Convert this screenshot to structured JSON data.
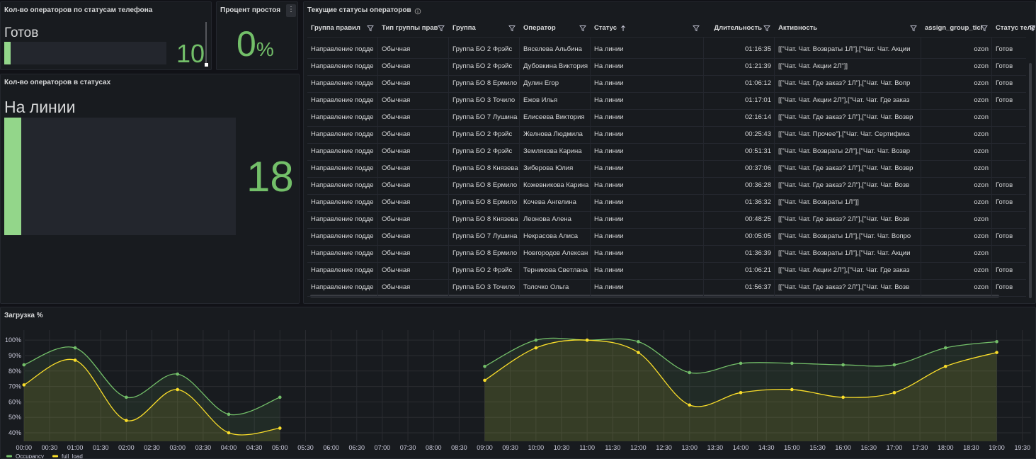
{
  "panels": {
    "phone_status": {
      "title": "Кол-во операторов по статусам телефона",
      "label": "Готов",
      "value": 10
    },
    "idle": {
      "title": "Процент простоя",
      "value": 0,
      "unit": "%"
    },
    "status_count": {
      "title": "Кол-во операторов в статусах",
      "label": "На линии",
      "value": 18
    }
  },
  "table": {
    "title": "Текущие статусы операторов",
    "columns": [
      "Группа правил",
      "Тип группы прав",
      "Группа",
      "Оператор",
      "Статус",
      "Длительность",
      "Активность",
      "assign_group_ticl",
      "Статус теле"
    ],
    "rows": [
      [
        "Направление подде",
        "Обычная",
        "Группа БО 2 Фрэйс",
        "Вяселева Альбина",
        "На линии",
        "01:16:35",
        "[[\"Чат. Чат. Возвраты 1Л\"],[\"Чат. Чат. Акции",
        "ozon",
        "Готов"
      ],
      [
        "Направление подде",
        "Обычная",
        "Группа БО 2 Фрэйс",
        "Дубовкина Виктория",
        "На линии",
        "01:21:39",
        "[[\"Чат. Чат. Акции 2Л\"]]",
        "ozon",
        "Готов"
      ],
      [
        "Направление подде",
        "Обычная",
        "Группа БО 8 Ермило",
        "Дулин Егор",
        "На линии",
        "01:06:12",
        "[[\"Чат. Чат. Где заказ? 1Л\"],[\"Чат. Чат. Вопр",
        "ozon",
        "Готов"
      ],
      [
        "Направление подде",
        "Обычная",
        "Группа БО 3 Точило",
        "Ежов Илья",
        "На линии",
        "01:17:01",
        "[[\"Чат. Чат. Акции 2Л\"],[\"Чат. Чат. Где заказ",
        "ozon",
        "Готов"
      ],
      [
        "Направление подде",
        "Обычная",
        "Группа БО 7 Лушина",
        "Елисеева Виктория",
        "На линии",
        "02:16:14",
        "[[\"Чат. Чат. Где заказ? 1Л\"],[\"Чат. Чат. Возвр",
        "ozon",
        null
      ],
      [
        "Направление подде",
        "Обычная",
        "Группа БО 2 Фрэйс",
        "Желнова Людмила",
        "На линии",
        "00:25:43",
        "[[\"Чат. Чат. Прочее\"],[\"Чат. Чат. Сертифика",
        "ozon",
        null
      ],
      [
        "Направление подде",
        "Обычная",
        "Группа БО 2 Фрэйс",
        "Землякова Карина",
        "На линии",
        "00:51:31",
        "[[\"Чат. Чат. Возвраты 2Л\"],[\"Чат. Чат. Возвр",
        "ozon",
        null
      ],
      [
        "Направление подде",
        "Обычная",
        "Группа БО 8 Князева",
        "Зиберова Юлия",
        "На линии",
        "00:37:06",
        "[[\"Чат. Чат. Где заказ? 1Л\"],[\"Чат. Чат. Возвр",
        "ozon",
        null
      ],
      [
        "Направление подде",
        "Обычная",
        "Группа БО 8 Ермило",
        "Кожевникова Карина",
        "На линии",
        "00:36:28",
        "[[\"Чат. Чат. Где заказ? 2Л\"],[\"Чат. Чат. Возв",
        "ozon",
        "Готов"
      ],
      [
        "Направление подде",
        "Обычная",
        "Группа БО 8 Ермило",
        "Кочева Ангелина",
        "На линии",
        "01:36:32",
        "[[\"Чат. Чат. Возвраты 1Л\"]]",
        "ozon",
        "Готов"
      ],
      [
        "Направление подде",
        "Обычная",
        "Группа БО 8 Князева",
        "Леонова Алена",
        "На линии",
        "00:48:25",
        "[[\"Чат. Чат. Где заказ? 2Л\"],[\"Чат. Чат. Возв",
        "ozon",
        null
      ],
      [
        "Направление подде",
        "Обычная",
        "Группа БО 7 Лушина",
        "Некрасова Алиса",
        "На линии",
        "00:05:05",
        "[[\"Чат. Чат. Возвраты 1Л\"],[\"Чат. Чат. Вопро",
        "ozon",
        "Готов"
      ],
      [
        "Направление подде",
        "Обычная",
        "Группа БО 8 Ермило",
        "Новгородов Алексан",
        "На линии",
        "01:36:39",
        "[[\"Чат. Чат. Возвраты 1Л\"],[\"Чат. Чат. Акции",
        "ozon",
        null
      ],
      [
        "Направление подде",
        "Обычная",
        "Группа БО 2 Фрэйс",
        "Терникова Светлана",
        "На линии",
        "01:06:21",
        "[[\"Чат. Чат. Акции 2Л\"],[\"Чат. Чат. Где заказ",
        "ozon",
        "Готов"
      ],
      [
        "Направление подде",
        "Обычная",
        "Группа БО 3 Точило",
        "Толочко Ольга",
        "На линии",
        "01:56:37",
        "[[\"Чат. Чат. Где заказ? 2Л\"],[\"Чат. Чат. Возв",
        "ozon",
        "Готов"
      ]
    ]
  },
  "chart_data": {
    "type": "line",
    "title": "Загрузка %",
    "x": [
      0,
      1,
      2,
      3,
      4,
      5,
      6,
      7,
      8,
      9,
      10,
      11,
      12,
      13,
      14,
      15,
      16,
      17,
      18,
      19
    ],
    "series": [
      {
        "name": "Occupancy",
        "color": "#73bf69",
        "values": [
          84,
          95,
          63,
          78,
          52,
          63,
          null,
          null,
          null,
          83,
          100,
          100,
          99,
          79,
          85,
          85,
          84,
          84,
          95,
          99
        ]
      },
      {
        "name": "full_load",
        "color": "#fade2a",
        "values": [
          71,
          87,
          48,
          68,
          40,
          43,
          null,
          null,
          null,
          74,
          95,
          100,
          92,
          58,
          66,
          68,
          63,
          66,
          83,
          92
        ]
      }
    ],
    "xlim": [
      -0.26,
      19.67
    ],
    "xticks": [
      {
        "value": 0,
        "label": "00:00"
      },
      {
        "value": 0.5,
        "label": "00:30"
      },
      {
        "value": 1,
        "label": "01:00"
      },
      {
        "value": 1.5,
        "label": "01:30"
      },
      {
        "value": 2,
        "label": "02:00"
      },
      {
        "value": 2.5,
        "label": "02:30"
      },
      {
        "value": 3,
        "label": "03:00"
      },
      {
        "value": 3.5,
        "label": "03:30"
      },
      {
        "value": 4,
        "label": "04:00"
      },
      {
        "value": 4.5,
        "label": "04:30"
      },
      {
        "value": 5,
        "label": "05:00"
      },
      {
        "value": 5.5,
        "label": "05:30"
      },
      {
        "value": 6,
        "label": "06:00"
      },
      {
        "value": 6.5,
        "label": "06:30"
      },
      {
        "value": 7,
        "label": "07:00"
      },
      {
        "value": 7.5,
        "label": "07:30"
      },
      {
        "value": 8,
        "label": "08:00"
      },
      {
        "value": 8.5,
        "label": "08:30"
      },
      {
        "value": 9,
        "label": "09:00"
      },
      {
        "value": 9.5,
        "label": "09:30"
      },
      {
        "value": 10,
        "label": "10:00"
      },
      {
        "value": 10.5,
        "label": "10:30"
      },
      {
        "value": 11,
        "label": "11:00"
      },
      {
        "value": 11.5,
        "label": "11:30"
      },
      {
        "value": 12,
        "label": "12:00"
      },
      {
        "value": 12.5,
        "label": "12:30"
      },
      {
        "value": 13,
        "label": "13:00"
      },
      {
        "value": 13.5,
        "label": "13:30"
      },
      {
        "value": 14,
        "label": "14:00"
      },
      {
        "value": 14.5,
        "label": "14:30"
      },
      {
        "value": 15,
        "label": "15:00"
      },
      {
        "value": 15.5,
        "label": "15:30"
      },
      {
        "value": 16,
        "label": "16:00"
      },
      {
        "value": 16.5,
        "label": "16:30"
      },
      {
        "value": 17,
        "label": "17:00"
      },
      {
        "value": 17.5,
        "label": "17:30"
      },
      {
        "value": 18,
        "label": "18:00"
      },
      {
        "value": 18.5,
        "label": "18:30"
      },
      {
        "value": 19,
        "label": "19:00"
      },
      {
        "value": 19.5,
        "label": "19:30"
      }
    ],
    "ylim": [
      34.5,
      106.5
    ],
    "yticks": [
      {
        "value": 40,
        "label": "40%"
      },
      {
        "value": 50,
        "label": "50%"
      },
      {
        "value": 60,
        "label": "60%"
      },
      {
        "value": 70,
        "label": "70%"
      },
      {
        "value": 80,
        "label": "80%"
      },
      {
        "value": 90,
        "label": "90%"
      },
      {
        "value": 100,
        "label": "100%"
      }
    ],
    "grid": true,
    "legend": "bottom-left"
  }
}
